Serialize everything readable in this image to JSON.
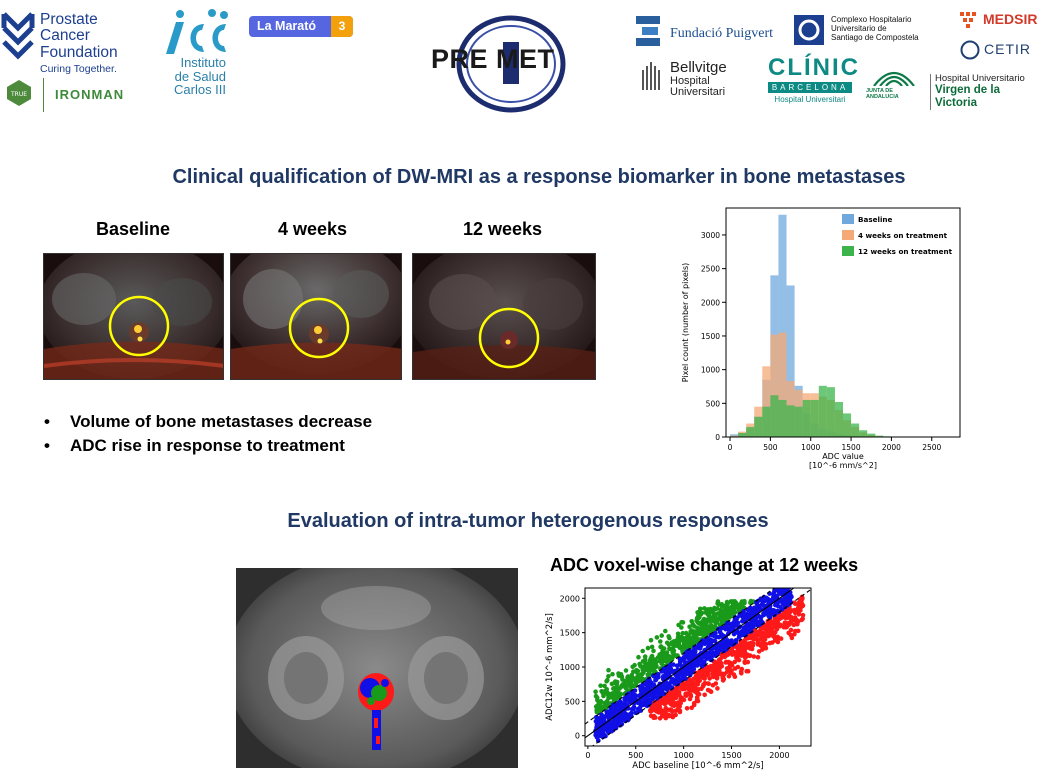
{
  "logos": {
    "pcf": {
      "line1": "Prostate Cancer",
      "line2": "Foundation",
      "line3": "Curing Together."
    },
    "ironman": "IRONMAN",
    "true_badge": "TRUE",
    "isc": {
      "line1": "Instituto",
      "line2": "de Salud",
      "line3": "Carlos III"
    },
    "marato": {
      "text": "La Marató",
      "badge": "3"
    },
    "premet": "PRE MET",
    "puigvert": "Fundació Puigvert",
    "chus": {
      "line1": "Complexo Hospitalario",
      "line2": "Universitario de",
      "line3": "Santiago de Compostela"
    },
    "medsir": "MEDSIR",
    "cetir": "CETIR",
    "bellvitge": {
      "line1": "Bellvitge",
      "line2": "Hospital Universitari"
    },
    "clinic": {
      "line1": "CLÍNIC",
      "line2": "BARCELONA",
      "line3": "Hospital Universitari"
    },
    "junta": "JUNTA DE ANDALUCIA",
    "hvv": {
      "line1": "Hospital Universitario",
      "line2": "Virgen de la Victoria"
    }
  },
  "section1": {
    "title": "Clinical qualification of DW-MRI as a response biomarker in bone metastases",
    "columns": [
      "Baseline",
      "4 weeks",
      "12 weeks"
    ],
    "bullets": [
      "Volume of bone metastases decrease",
      "ADC rise in response to treatment"
    ]
  },
  "section2": {
    "title": "Evaluation of intra-tumor heterogenous responses",
    "scatter_title": "ADC voxel-wise change at 12 weeks"
  },
  "colors": {
    "title_blue": "#1f3864",
    "baseline": "#6fa8dc",
    "four_weeks": "#f4a976",
    "twelve_weeks": "#3cb44b",
    "ring_yellow": "#ffff00",
    "scatter_green": "#1a9a1a",
    "scatter_blue": "#1010e6",
    "scatter_red": "#ff1a1a"
  },
  "chart_data": [
    {
      "type": "bar",
      "subtype": "histogram",
      "xlabel": "ADC value",
      "xlabel_units": "[10^-6 mm/s^2]",
      "ylabel": "Pixel count (number of pixels)",
      "xlim": [
        -50,
        2850
      ],
      "ylim": [
        0,
        3400
      ],
      "xticks": [
        0,
        500,
        1000,
        1500,
        2000,
        2500
      ],
      "yticks": [
        0,
        500,
        1000,
        1500,
        2000,
        2500,
        3000
      ],
      "legend_position": "top-right",
      "bin_width": 100,
      "bin_starts": [
        0,
        100,
        200,
        300,
        400,
        500,
        600,
        700,
        800,
        900,
        1000,
        1100,
        1200,
        1300,
        1400,
        1500,
        1600,
        1700,
        1800,
        1900
      ],
      "series": [
        {
          "name": "Baseline",
          "values": [
            40,
            60,
            120,
            300,
            850,
            2400,
            3300,
            2250,
            760,
            350,
            200,
            120,
            80,
            50,
            30,
            10,
            0,
            0,
            0,
            0
          ]
        },
        {
          "name": "4 weeks on treatment",
          "values": [
            20,
            80,
            200,
            450,
            1050,
            1520,
            1550,
            830,
            700,
            650,
            650,
            600,
            550,
            400,
            250,
            150,
            70,
            30,
            10,
            0
          ]
        },
        {
          "name": "12 weeks on treatment",
          "values": [
            10,
            60,
            150,
            300,
            450,
            620,
            550,
            470,
            450,
            550,
            550,
            760,
            740,
            520,
            350,
            200,
            100,
            50,
            20,
            10
          ]
        }
      ]
    },
    {
      "type": "scatter",
      "xlabel": "ADC baseline [10^-6 mm^2/s]",
      "ylabel": "ADC12w 10^-6 mm^2/s]",
      "xlim": [
        -30,
        2330
      ],
      "ylim": [
        -150,
        2150
      ],
      "xticks": [
        0,
        500,
        1000,
        1500,
        2000
      ],
      "yticks": [
        0,
        500,
        1000,
        1500,
        2000
      ],
      "reference_lines": [
        {
          "style": "solid",
          "slope": 1,
          "intercept": 0
        },
        {
          "style": "dashed",
          "slope": 1,
          "intercept": 200
        },
        {
          "style": "dashed",
          "slope": 1,
          "intercept": -200
        }
      ],
      "groups": [
        {
          "color": "green",
          "x_range": [
            50,
            2000
          ],
          "y_min_offset": 200,
          "y_max": 1950
        },
        {
          "color": "blue",
          "x_range": [
            0,
            2150
          ],
          "band": [
            -200,
            200
          ]
        },
        {
          "color": "red",
          "x_range": [
            600,
            2250
          ],
          "y_max_offset": -200,
          "y_min": 250
        }
      ]
    }
  ]
}
